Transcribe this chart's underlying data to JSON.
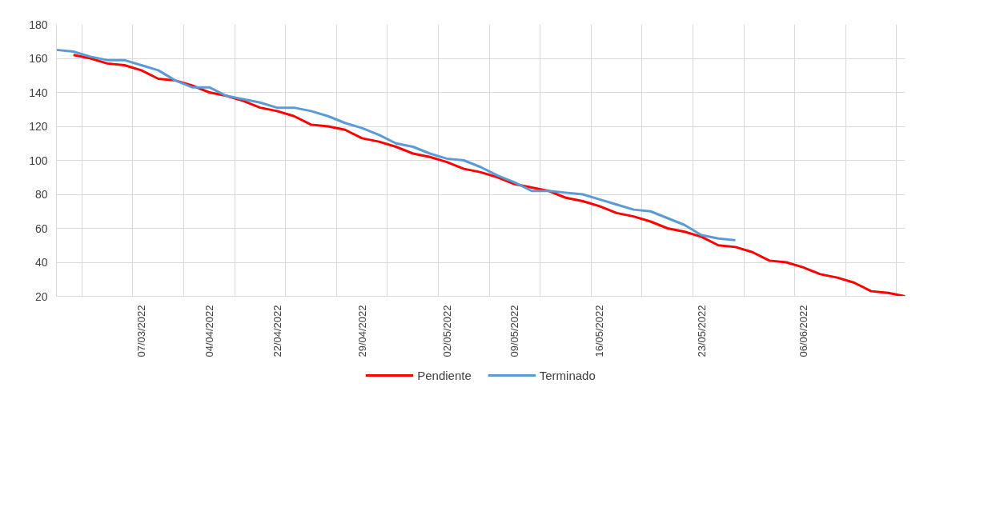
{
  "chart_data": {
    "type": "line",
    "ylim": [
      20,
      180
    ],
    "yticks": [
      20,
      40,
      60,
      80,
      100,
      120,
      140,
      160,
      180
    ],
    "categories": [
      null,
      null,
      null,
      null,
      null,
      "07/03/2022",
      null,
      null,
      null,
      "04/04/2022",
      null,
      null,
      null,
      "22/04/2022",
      null,
      null,
      null,
      null,
      "29/04/2022",
      null,
      null,
      null,
      null,
      "02/05/2022",
      null,
      null,
      null,
      "09/05/2022",
      null,
      null,
      null,
      null,
      "16/05/2022",
      null,
      null,
      null,
      null,
      null,
      "23/05/2022",
      null,
      null,
      null,
      null,
      null,
      "06/06/2022",
      null,
      null,
      null,
      null,
      null,
      null
    ],
    "grid": true,
    "legend": "bottom",
    "marker": "none",
    "line_style": "solid",
    "series": [
      {
        "name": "Pendiente",
        "color": "#ff0000",
        "values": [
          null,
          162,
          160,
          157,
          156,
          153,
          148,
          147,
          144,
          140,
          138,
          135,
          131,
          129,
          126,
          121,
          120,
          118,
          113,
          111,
          108,
          104,
          102,
          99,
          95,
          93,
          90,
          86,
          84,
          82,
          78,
          76,
          73,
          69,
          67,
          64,
          60,
          58,
          55,
          50,
          49,
          46,
          41,
          40,
          37,
          33,
          31,
          28,
          23,
          22,
          20
        ]
      },
      {
        "name": "Terminado",
        "color": "#5b9bd5",
        "values": [
          165,
          164,
          161,
          159,
          159,
          156,
          153,
          147,
          143,
          143,
          138,
          136,
          134,
          131,
          131,
          129,
          126,
          122,
          119,
          115,
          110,
          108,
          104,
          101,
          100,
          96,
          91,
          87,
          82,
          82,
          81,
          80,
          77,
          74,
          71,
          70,
          66,
          62,
          56,
          54,
          53,
          null,
          null,
          null,
          null,
          null,
          null,
          null,
          null,
          null,
          null
        ]
      }
    ]
  }
}
